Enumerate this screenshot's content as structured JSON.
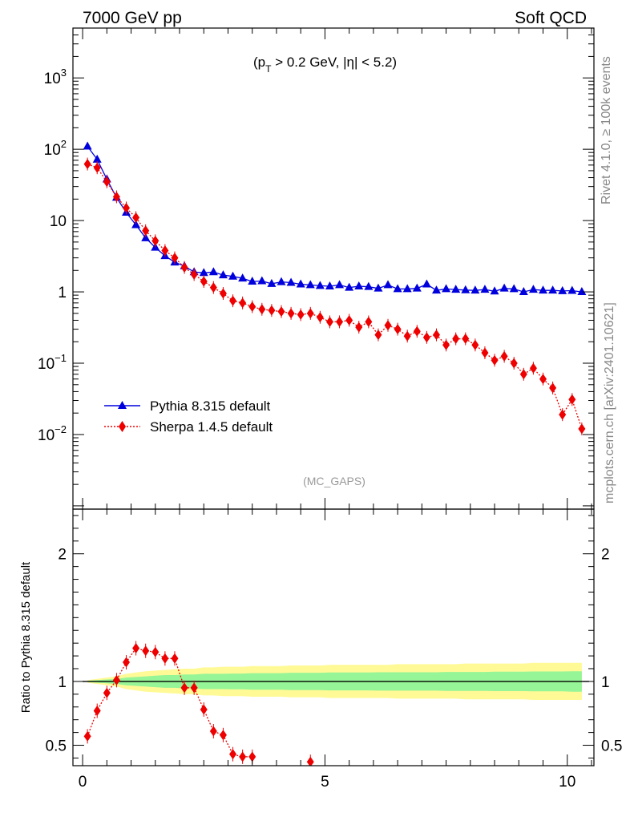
{
  "header": {
    "left": "7000 GeV pp",
    "right": "Soft QCD"
  },
  "side_label": {
    "top": "Rivet 4.1.0, ≥ 100k events",
    "bottom": "mcplots.cern.ch [arXiv:2401.10621]"
  },
  "cut_label": "(pT > 0.2 GeV, |η| < 5.2)",
  "cut": {
    "p": "(p",
    "sub": "T",
    "rest": " > 0.2 GeV, |η| < 5.2)"
  },
  "analysis": "(MC_GAPS)",
  "colors": {
    "pythia": "#0000dd",
    "sherpa": "#ee0000",
    "band_outer": "#fffa96",
    "band_inner": "#96f596"
  },
  "chart_data": [
    {
      "type": "line",
      "scale": "log",
      "title": "",
      "xlabel": "",
      "ylabel": "",
      "xlim": [
        -0.2,
        10.55
      ],
      "ylim": [
        0.0009,
        5000
      ],
      "y_ticks": [
        {
          "value": 0.01,
          "base": "10",
          "exp": "−2"
        },
        {
          "value": 0.1,
          "base": "10",
          "exp": "−1"
        },
        {
          "value": 1,
          "base": "1",
          "exp": ""
        },
        {
          "value": 10,
          "base": "10",
          "exp": ""
        },
        {
          "value": 100,
          "base": "10",
          "exp": "2"
        },
        {
          "value": 1000,
          "base": "10",
          "exp": "3"
        }
      ],
      "legend": [
        {
          "name": "Pythia 8.315 default",
          "marker": "triangle",
          "style": "solid"
        },
        {
          "name": "Sherpa 1.4.5 default",
          "marker": "diamond",
          "style": "dotted"
        }
      ],
      "legend_position": "bottom-left",
      "x": [
        0.1,
        0.3,
        0.5,
        0.7,
        0.9,
        1.1,
        1.3,
        1.5,
        1.7,
        1.9,
        2.1,
        2.3,
        2.5,
        2.7,
        2.9,
        3.1,
        3.3,
        3.5,
        3.7,
        3.9,
        4.1,
        4.3,
        4.5,
        4.7,
        4.9,
        5.1,
        5.3,
        5.5,
        5.7,
        5.9,
        6.1,
        6.3,
        6.5,
        6.7,
        6.9,
        7.1,
        7.3,
        7.5,
        7.7,
        7.9,
        8.1,
        8.3,
        8.5,
        8.7,
        8.9,
        9.1,
        9.3,
        9.5,
        9.7,
        9.9,
        10.1,
        10.3
      ],
      "series": [
        {
          "name": "Pythia 8.315 default",
          "values": [
            110,
            72,
            38,
            21,
            13,
            8.7,
            5.7,
            4.2,
            3.2,
            2.6,
            2.3,
            1.9,
            1.85,
            1.9,
            1.72,
            1.65,
            1.55,
            1.4,
            1.42,
            1.3,
            1.38,
            1.35,
            1.28,
            1.25,
            1.22,
            1.2,
            1.25,
            1.15,
            1.2,
            1.18,
            1.12,
            1.25,
            1.1,
            1.1,
            1.12,
            1.28,
            1.05,
            1.1,
            1.08,
            1.06,
            1.05,
            1.08,
            1.02,
            1.12,
            1.1,
            1.0,
            1.08,
            1.05,
            1.05,
            1.03,
            1.04,
            1.0
          ]
        },
        {
          "name": "Sherpa 1.4.5 default",
          "values": [
            62,
            55,
            35,
            21.5,
            15,
            11,
            7.2,
            5.2,
            3.8,
            3.0,
            2.2,
            1.75,
            1.4,
            1.15,
            0.95,
            0.75,
            0.7,
            0.62,
            0.57,
            0.55,
            0.53,
            0.5,
            0.48,
            0.5,
            0.44,
            0.38,
            0.38,
            0.4,
            0.32,
            0.38,
            0.25,
            0.34,
            0.3,
            0.24,
            0.28,
            0.23,
            0.25,
            0.18,
            0.22,
            0.22,
            0.18,
            0.14,
            0.11,
            0.125,
            0.1,
            0.07,
            0.085,
            0.06,
            0.045,
            0.019,
            0.031,
            0.012
          ]
        }
      ]
    },
    {
      "type": "line",
      "title": "",
      "xlabel": "",
      "ylabel": "Ratio to Pythia 8.315 default",
      "xlim": [
        -0.2,
        10.55
      ],
      "ylim": [
        0.34,
        2.35
      ],
      "y_ticks": [
        0.5,
        1,
        2
      ],
      "x_ticks": [
        0,
        5,
        10
      ],
      "reference": 1,
      "band_inner": [
        0.005,
        0.01,
        0.015,
        0.02,
        0.03,
        0.035,
        0.04,
        0.045,
        0.05,
        0.05,
        0.055,
        0.055,
        0.06,
        0.06,
        0.06,
        0.062,
        0.062,
        0.065,
        0.065,
        0.065,
        0.065,
        0.068,
        0.068,
        0.068,
        0.068,
        0.07,
        0.07,
        0.07,
        0.07,
        0.07,
        0.072,
        0.072,
        0.072,
        0.072,
        0.072,
        0.072,
        0.072,
        0.074,
        0.074,
        0.074,
        0.074,
        0.074,
        0.076,
        0.076,
        0.076,
        0.076,
        0.078,
        0.078,
        0.078,
        0.078,
        0.08,
        0.08
      ],
      "band_outer": [
        0.01,
        0.02,
        0.03,
        0.04,
        0.06,
        0.07,
        0.08,
        0.085,
        0.09,
        0.095,
        0.1,
        0.1,
        0.11,
        0.11,
        0.115,
        0.115,
        0.115,
        0.12,
        0.12,
        0.12,
        0.12,
        0.125,
        0.125,
        0.125,
        0.125,
        0.13,
        0.13,
        0.13,
        0.13,
        0.13,
        0.13,
        0.13,
        0.135,
        0.135,
        0.135,
        0.135,
        0.135,
        0.135,
        0.135,
        0.14,
        0.14,
        0.14,
        0.14,
        0.14,
        0.14,
        0.14,
        0.145,
        0.145,
        0.145,
        0.145,
        0.145,
        0.145
      ],
      "series": [
        {
          "name": "Sherpa 1.4.5 default",
          "x": [
            0.1,
            0.3,
            0.5,
            0.7,
            0.9,
            1.1,
            1.3,
            1.5,
            1.7,
            1.9,
            2.1,
            2.3,
            2.5,
            2.7,
            2.9,
            3.1,
            3.3,
            3.5,
            4.7
          ],
          "values": [
            0.57,
            0.77,
            0.91,
            1.01,
            1.15,
            1.26,
            1.24,
            1.23,
            1.18,
            1.18,
            0.95,
            0.95,
            0.78,
            0.61,
            0.58,
            0.43,
            0.41,
            0.41,
            0.37
          ]
        }
      ]
    }
  ]
}
